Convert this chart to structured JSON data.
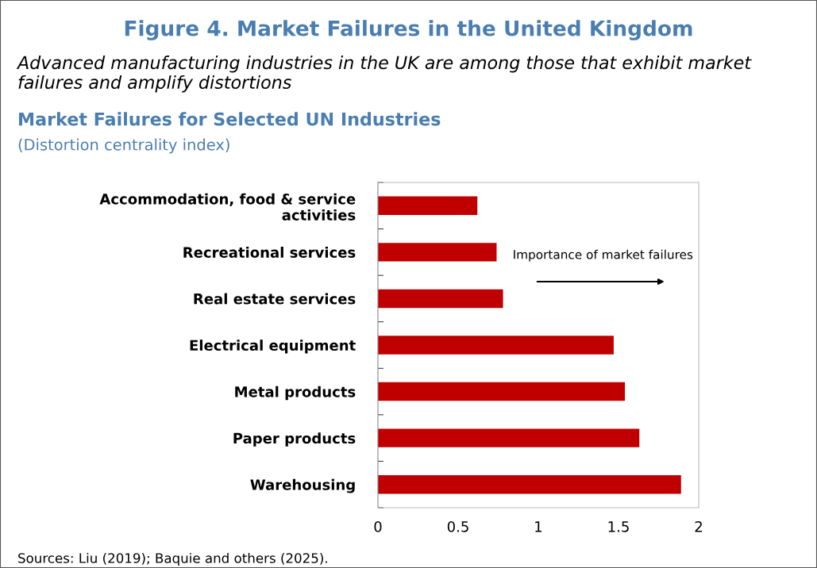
{
  "chart_data": {
    "type": "bar",
    "orientation": "horizontal",
    "title": "Figure 4. Market Failures in the United Kingdom",
    "subtitle": "Advanced manufacturing industries in the UK are among those that exhibit market failures and amplify distortions",
    "ylabel": "Market Failures for Selected UN Industries",
    "xlabel": "(Distortion centrality index)",
    "categories": [
      "Accommodation, food & service\nactivities",
      "Recreational services",
      "Real estate services",
      "Electrical equipment",
      "Metal products",
      "Paper products",
      "Warehousing"
    ],
    "values": [
      0.62,
      0.74,
      0.78,
      1.47,
      1.54,
      1.63,
      1.89
    ],
    "color": "#c00000",
    "xlim": [
      0,
      2
    ],
    "xticks": [
      0,
      0.5,
      1,
      1.5,
      2
    ],
    "annotations": [
      "Importance of market failures",
      "Sources: Liu (2019); Baquie and others (2025)."
    ],
    "grid": false,
    "legend": false
  }
}
